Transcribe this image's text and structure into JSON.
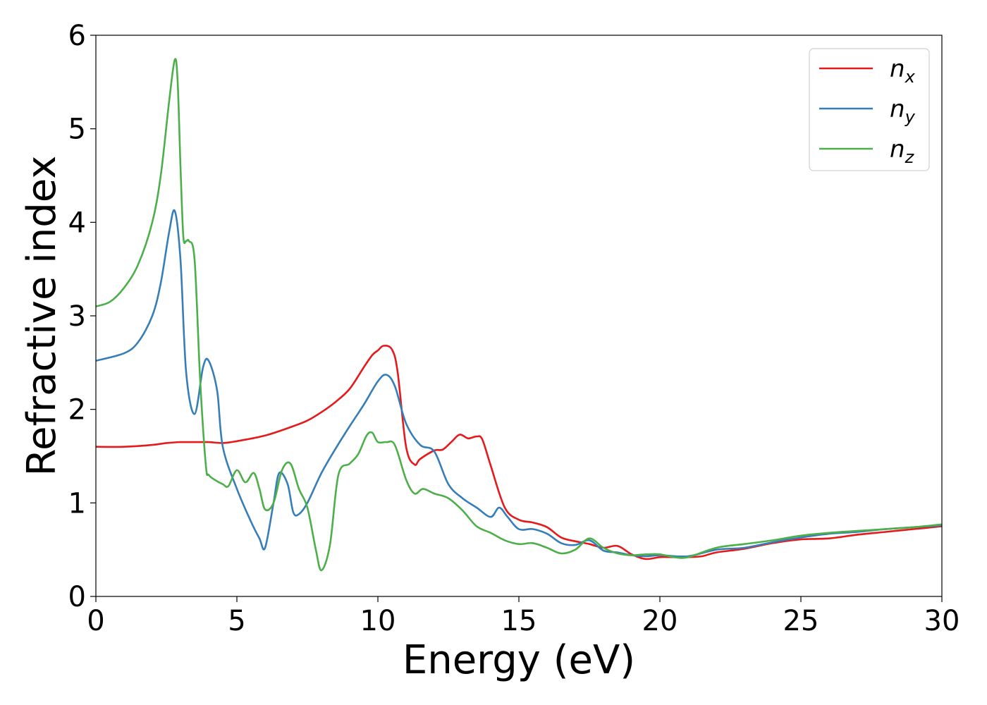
{
  "chart_data": {
    "type": "line",
    "title": "",
    "xlabel": "Energy (eV)",
    "ylabel": "Refractive index",
    "xlim": [
      0,
      30
    ],
    "ylim": [
      0,
      6
    ],
    "xticks": [
      0,
      5,
      10,
      15,
      20,
      25,
      30
    ],
    "yticks": [
      0,
      1,
      2,
      3,
      4,
      5,
      6
    ],
    "grid": false,
    "legend_position": "top-right",
    "series": [
      {
        "name": "n",
        "subscript": "x",
        "color": "#e41a1c",
        "x": [
          0,
          1,
          2,
          2.5,
          3,
          3.5,
          4,
          4.5,
          5,
          6,
          7,
          7.5,
          8,
          8.5,
          9,
          9.5,
          9.8,
          10,
          10.2,
          10.5,
          10.7,
          11,
          11.3,
          11.5,
          12,
          12.3,
          12.6,
          12.9,
          13.2,
          13.5,
          13.7,
          14,
          14.5,
          15,
          15.5,
          16,
          16.5,
          17,
          17.5,
          18,
          18.5,
          19,
          19.5,
          20,
          20.5,
          21,
          21.5,
          22,
          23,
          24,
          25,
          26,
          27,
          28,
          29,
          30
        ],
        "y": [
          1.6,
          1.6,
          1.62,
          1.64,
          1.65,
          1.65,
          1.65,
          1.64,
          1.66,
          1.72,
          1.82,
          1.88,
          1.97,
          2.08,
          2.22,
          2.45,
          2.58,
          2.63,
          2.68,
          2.64,
          2.4,
          1.6,
          1.41,
          1.47,
          1.56,
          1.57,
          1.65,
          1.73,
          1.69,
          1.71,
          1.68,
          1.4,
          0.95,
          0.82,
          0.79,
          0.74,
          0.63,
          0.59,
          0.56,
          0.52,
          0.54,
          0.45,
          0.4,
          0.42,
          0.42,
          0.42,
          0.43,
          0.47,
          0.51,
          0.57,
          0.61,
          0.62,
          0.66,
          0.69,
          0.72,
          0.75
        ]
      },
      {
        "name": "n",
        "subscript": "y",
        "color": "#377eb8",
        "x": [
          0,
          1,
          1.5,
          2,
          2.3,
          2.6,
          2.8,
          3.0,
          3.2,
          3.5,
          3.8,
          4.0,
          4.3,
          4.5,
          5.0,
          5.5,
          5.8,
          6.0,
          6.3,
          6.5,
          6.8,
          7.0,
          7.2,
          7.5,
          8.0,
          8.5,
          9.0,
          9.5,
          10.0,
          10.3,
          10.6,
          11.0,
          11.5,
          12.0,
          12.5,
          13.0,
          13.5,
          14.0,
          14.3,
          14.6,
          15.0,
          15.5,
          16.0,
          16.5,
          17.0,
          17.5,
          18.0,
          18.5,
          19.0,
          19.5,
          20.0,
          21.0,
          22.0,
          23.0,
          24.0,
          25.0,
          26.0,
          27.0,
          28.0,
          29.0,
          30.0
        ],
        "y": [
          2.52,
          2.6,
          2.72,
          3.0,
          3.35,
          3.9,
          4.12,
          3.6,
          2.4,
          1.95,
          2.45,
          2.52,
          2.2,
          1.6,
          1.15,
          0.8,
          0.62,
          0.52,
          1.0,
          1.32,
          1.2,
          0.9,
          0.88,
          1.0,
          1.32,
          1.58,
          1.82,
          2.05,
          2.3,
          2.37,
          2.25,
          1.85,
          1.62,
          1.55,
          1.2,
          1.05,
          0.95,
          0.85,
          0.95,
          0.85,
          0.72,
          0.72,
          0.67,
          0.57,
          0.55,
          0.6,
          0.49,
          0.47,
          0.44,
          0.43,
          0.44,
          0.43,
          0.5,
          0.52,
          0.58,
          0.63,
          0.67,
          0.69,
          0.72,
          0.74,
          0.76
        ]
      },
      {
        "name": "n",
        "subscript": "z",
        "color": "#4daf4a",
        "x": [
          0,
          0.5,
          1,
          1.5,
          2,
          2.3,
          2.6,
          2.8,
          2.9,
          3.0,
          3.1,
          3.2,
          3.3,
          3.5,
          3.7,
          3.9,
          4.0,
          4.2,
          4.5,
          4.7,
          5.0,
          5.3,
          5.6,
          5.8,
          6.0,
          6.3,
          6.6,
          6.9,
          7.2,
          7.5,
          7.8,
          8.0,
          8.3,
          8.6,
          9.0,
          9.3,
          9.6,
          9.8,
          10.0,
          10.3,
          10.6,
          11.0,
          11.3,
          11.6,
          12.0,
          12.5,
          13.0,
          13.5,
          14.0,
          14.5,
          15.0,
          15.5,
          16.0,
          16.5,
          17.0,
          17.5,
          18.0,
          18.5,
          19.0,
          19.5,
          20.0,
          20.5,
          21.0,
          22.0,
          23.0,
          24.0,
          25.0,
          26.0,
          27.0,
          28.0,
          29.0,
          30.0
        ],
        "y": [
          3.1,
          3.15,
          3.3,
          3.55,
          4.0,
          4.5,
          5.3,
          5.74,
          5.5,
          4.6,
          3.85,
          3.8,
          3.8,
          3.6,
          2.3,
          1.4,
          1.3,
          1.25,
          1.2,
          1.18,
          1.35,
          1.22,
          1.32,
          1.15,
          0.93,
          1.0,
          1.35,
          1.42,
          1.15,
          0.95,
          0.5,
          0.28,
          0.55,
          1.3,
          1.42,
          1.52,
          1.72,
          1.75,
          1.65,
          1.65,
          1.62,
          1.25,
          1.1,
          1.15,
          1.1,
          1.05,
          0.92,
          0.75,
          0.68,
          0.6,
          0.56,
          0.57,
          0.52,
          0.46,
          0.5,
          0.62,
          0.52,
          0.46,
          0.44,
          0.45,
          0.45,
          0.42,
          0.42,
          0.52,
          0.56,
          0.6,
          0.65,
          0.68,
          0.7,
          0.72,
          0.74,
          0.77
        ]
      }
    ]
  }
}
